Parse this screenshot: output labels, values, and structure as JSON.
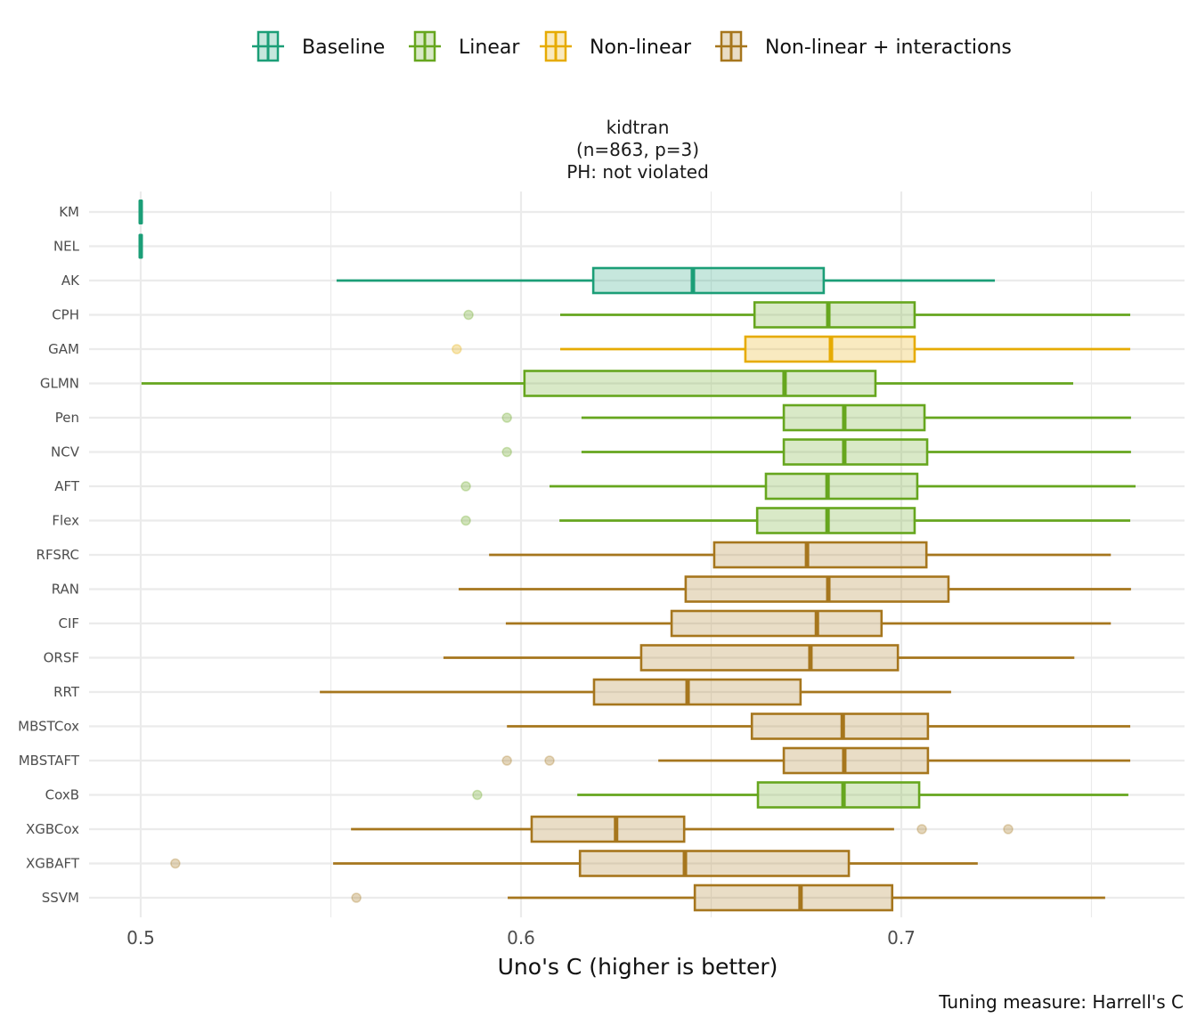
{
  "chart_data": {
    "type": "boxplot",
    "orientation": "horizontal",
    "title": [
      "kidtran",
      "(n=863, p=3)",
      "PH: not violated"
    ],
    "xlabel": "Uno's C (higher is better)",
    "ylabel": "",
    "caption": "Tuning measure: Harrell's C",
    "xlim": [
      0.487,
      0.775
    ],
    "xticks": [
      0.5,
      0.6,
      0.7
    ],
    "xtick_labels": [
      "0.5",
      "0.6",
      "0.7"
    ],
    "minor_gridlines": [
      0.55,
      0.65,
      0.75
    ],
    "grid": true,
    "legend": {
      "placement": "top",
      "entries": [
        {
          "key": "baseline",
          "label": "Baseline"
        },
        {
          "key": "linear",
          "label": "Linear"
        },
        {
          "key": "nonlinear",
          "label": "Non-linear"
        },
        {
          "key": "nonlinear_int",
          "label": "Non-linear + interactions"
        }
      ]
    },
    "colors": {
      "baseline": "#1B9E77",
      "linear": "#66A61E",
      "nonlinear": "#E6AB02",
      "nonlinear_int": "#A6761D"
    },
    "series": [
      {
        "name": "KM",
        "group": "baseline",
        "min": 0.5,
        "q1": 0.5,
        "median": 0.5,
        "q3": 0.5,
        "max": 0.5,
        "outliers": []
      },
      {
        "name": "NEL",
        "group": "baseline",
        "min": 0.5,
        "q1": 0.5,
        "median": 0.5,
        "q3": 0.5,
        "max": 0.5,
        "outliers": []
      },
      {
        "name": "AK",
        "group": "baseline",
        "min": 0.5515,
        "q1": 0.619,
        "median": 0.6452,
        "q3": 0.6796,
        "max": 0.7246,
        "outliers": []
      },
      {
        "name": "CPH",
        "group": "linear",
        "min": 0.6103,
        "q1": 0.6614,
        "median": 0.6808,
        "q3": 0.7035,
        "max": 0.7602,
        "outliers": [
          0.5862
        ]
      },
      {
        "name": "GAM",
        "group": "nonlinear",
        "min": 0.6103,
        "q1": 0.659,
        "median": 0.6815,
        "q3": 0.7035,
        "max": 0.7602,
        "outliers": [
          0.5831
        ]
      },
      {
        "name": "GLMN",
        "group": "linear",
        "min": 0.5002,
        "q1": 0.6009,
        "median": 0.6693,
        "q3": 0.6932,
        "max": 0.7452,
        "outliers": []
      },
      {
        "name": "Pen",
        "group": "linear",
        "min": 0.6159,
        "q1": 0.6691,
        "median": 0.685,
        "q3": 0.7061,
        "max": 0.7604,
        "outliers": [
          0.5963
        ]
      },
      {
        "name": "NCV",
        "group": "linear",
        "min": 0.6159,
        "q1": 0.6691,
        "median": 0.685,
        "q3": 0.7068,
        "max": 0.7604,
        "outliers": [
          0.5963
        ]
      },
      {
        "name": "AFT",
        "group": "linear",
        "min": 0.6075,
        "q1": 0.6644,
        "median": 0.6806,
        "q3": 0.7042,
        "max": 0.7616,
        "outliers": [
          0.5855
        ]
      },
      {
        "name": "Flex",
        "group": "linear",
        "min": 0.6101,
        "q1": 0.6621,
        "median": 0.6806,
        "q3": 0.7035,
        "max": 0.7602,
        "outliers": [
          0.5855
        ]
      },
      {
        "name": "RFSRC",
        "group": "nonlinear_int",
        "min": 0.5916,
        "q1": 0.6508,
        "median": 0.6752,
        "q3": 0.7066,
        "max": 0.7551,
        "outliers": []
      },
      {
        "name": "RAN",
        "group": "nonlinear_int",
        "min": 0.5836,
        "q1": 0.6433,
        "median": 0.6808,
        "q3": 0.7124,
        "max": 0.7604,
        "outliers": []
      },
      {
        "name": "CIF",
        "group": "nonlinear_int",
        "min": 0.596,
        "q1": 0.6396,
        "median": 0.6778,
        "q3": 0.6948,
        "max": 0.7551,
        "outliers": []
      },
      {
        "name": "ORSF",
        "group": "nonlinear_int",
        "min": 0.5796,
        "q1": 0.6316,
        "median": 0.6761,
        "q3": 0.6991,
        "max": 0.7455,
        "outliers": []
      },
      {
        "name": "RRT",
        "group": "nonlinear_int",
        "min": 0.5471,
        "q1": 0.6192,
        "median": 0.6438,
        "q3": 0.6735,
        "max": 0.7131,
        "outliers": []
      },
      {
        "name": "MBSTCox",
        "group": "nonlinear_int",
        "min": 0.5963,
        "q1": 0.6607,
        "median": 0.6846,
        "q3": 0.707,
        "max": 0.7602,
        "outliers": []
      },
      {
        "name": "MBSTAFT",
        "group": "nonlinear_int",
        "min": 0.6361,
        "q1": 0.6691,
        "median": 0.685,
        "q3": 0.707,
        "max": 0.7602,
        "outliers": [
          0.5963,
          0.6075
        ]
      },
      {
        "name": "CoxB",
        "group": "linear",
        "min": 0.6148,
        "q1": 0.6623,
        "median": 0.6848,
        "q3": 0.7047,
        "max": 0.7597,
        "outliers": [
          0.5885
        ]
      },
      {
        "name": "XGBCox",
        "group": "nonlinear_int",
        "min": 0.5553,
        "q1": 0.6028,
        "median": 0.625,
        "q3": 0.6429,
        "max": 0.6981,
        "outliers": [
          0.7054,
          0.7281
        ]
      },
      {
        "name": "XGBAFT",
        "group": "nonlinear_int",
        "min": 0.5506,
        "q1": 0.6155,
        "median": 0.6431,
        "q3": 0.6862,
        "max": 0.7201,
        "outliers": [
          0.5091
        ]
      },
      {
        "name": "SSVM",
        "group": "nonlinear_int",
        "min": 0.5965,
        "q1": 0.6457,
        "median": 0.6735,
        "q3": 0.6976,
        "max": 0.7536,
        "outliers": [
          0.5567
        ]
      }
    ]
  }
}
